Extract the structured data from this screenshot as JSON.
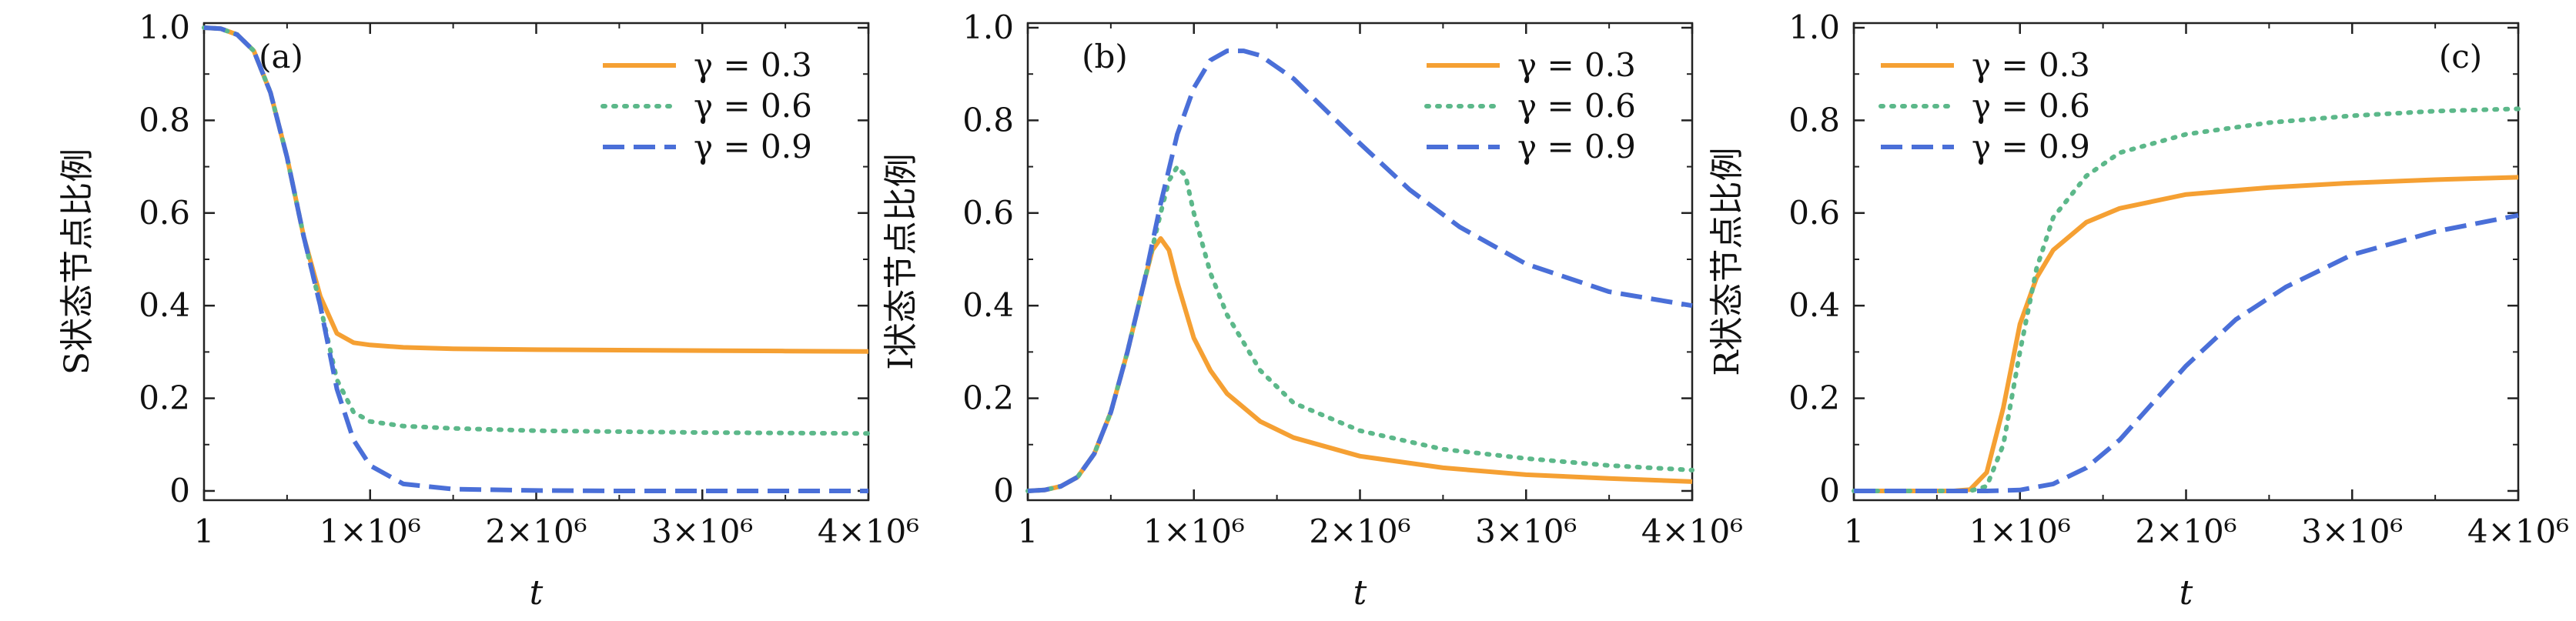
{
  "chart_data": [
    {
      "type": "line",
      "panel_label": "(a)",
      "ylabel": "S状态节点比例",
      "xlabel": "t",
      "x_tick_labels": [
        "1",
        "1×10⁶",
        "2×10⁶",
        "3×10⁶",
        "4×10⁶"
      ],
      "x_ticks": [
        1,
        1000000,
        2000000,
        3000000,
        4000000
      ],
      "y_tick_labels": [
        "0",
        "0.2",
        "0.4",
        "0.6",
        "0.8",
        "1.0"
      ],
      "y_ticks": [
        0,
        0.2,
        0.4,
        0.6,
        0.8,
        1.0
      ],
      "xlim": [
        1,
        4000000
      ],
      "ylim": [
        -0.02,
        1.01
      ],
      "legend_position": "top-right",
      "series": [
        {
          "name": "γ = 0.3",
          "style": "solid",
          "color": "#f5a033",
          "x": [
            1,
            100000,
            200000,
            300000,
            400000,
            500000,
            600000,
            700000,
            800000,
            900000,
            1000000,
            1200000,
            1500000,
            2000000,
            2500000,
            3000000,
            3500000,
            4000000
          ],
          "y": [
            1.0,
            0.998,
            0.985,
            0.95,
            0.86,
            0.72,
            0.55,
            0.42,
            0.34,
            0.32,
            0.315,
            0.31,
            0.307,
            0.305,
            0.304,
            0.303,
            0.302,
            0.301
          ]
        },
        {
          "name": "γ = 0.6",
          "style": "dotted",
          "color": "#5cb88a",
          "x": [
            1,
            100000,
            200000,
            300000,
            400000,
            500000,
            600000,
            700000,
            800000,
            900000,
            1000000,
            1200000,
            1500000,
            2000000,
            2500000,
            3000000,
            3500000,
            4000000
          ],
          "y": [
            1.0,
            0.998,
            0.985,
            0.95,
            0.86,
            0.72,
            0.55,
            0.4,
            0.24,
            0.17,
            0.15,
            0.14,
            0.135,
            0.13,
            0.128,
            0.126,
            0.125,
            0.124
          ]
        },
        {
          "name": "γ = 0.9",
          "style": "dashed",
          "color": "#4a6fd8",
          "x": [
            1,
            100000,
            200000,
            300000,
            400000,
            500000,
            600000,
            700000,
            800000,
            900000,
            1000000,
            1200000,
            1500000,
            2000000,
            2500000,
            3000000,
            3500000,
            4000000
          ],
          "y": [
            1.0,
            0.998,
            0.985,
            0.95,
            0.86,
            0.72,
            0.55,
            0.4,
            0.22,
            0.11,
            0.055,
            0.015,
            0.004,
            0.001,
            0.0,
            0.0,
            0.0,
            0.0
          ]
        }
      ]
    },
    {
      "type": "line",
      "panel_label": "(b)",
      "ylabel": "I状态节点比例",
      "xlabel": "t",
      "x_tick_labels": [
        "1",
        "1×10⁶",
        "2×10⁶",
        "3×10⁶",
        "4×10⁶"
      ],
      "x_ticks": [
        1,
        1000000,
        2000000,
        3000000,
        4000000
      ],
      "y_tick_labels": [
        "0",
        "0.2",
        "0.4",
        "0.6",
        "0.8",
        "1.0"
      ],
      "y_ticks": [
        0,
        0.2,
        0.4,
        0.6,
        0.8,
        1.0
      ],
      "xlim": [
        1,
        4000000
      ],
      "ylim": [
        -0.02,
        1.01
      ],
      "legend_position": "top-right",
      "series": [
        {
          "name": "γ = 0.3",
          "style": "solid",
          "color": "#f5a033",
          "x": [
            1,
            100000,
            200000,
            300000,
            400000,
            500000,
            600000,
            700000,
            750000,
            800000,
            850000,
            900000,
            1000000,
            1100000,
            1200000,
            1400000,
            1600000,
            2000000,
            2500000,
            3000000,
            3500000,
            4000000
          ],
          "y": [
            0.0,
            0.002,
            0.01,
            0.03,
            0.08,
            0.17,
            0.3,
            0.45,
            0.52,
            0.545,
            0.52,
            0.45,
            0.33,
            0.26,
            0.21,
            0.15,
            0.115,
            0.075,
            0.05,
            0.035,
            0.027,
            0.02
          ]
        },
        {
          "name": "γ = 0.6",
          "style": "dotted",
          "color": "#5cb88a",
          "x": [
            1,
            100000,
            200000,
            300000,
            400000,
            500000,
            600000,
            700000,
            800000,
            850000,
            900000,
            950000,
            1000000,
            1100000,
            1200000,
            1400000,
            1600000,
            2000000,
            2500000,
            3000000,
            3500000,
            4000000
          ],
          "y": [
            0.0,
            0.002,
            0.01,
            0.03,
            0.08,
            0.17,
            0.3,
            0.45,
            0.6,
            0.67,
            0.7,
            0.68,
            0.6,
            0.47,
            0.38,
            0.26,
            0.19,
            0.13,
            0.09,
            0.07,
            0.055,
            0.045
          ]
        },
        {
          "name": "γ = 0.9",
          "style": "dashed",
          "color": "#4a6fd8",
          "x": [
            1,
            100000,
            200000,
            300000,
            400000,
            500000,
            600000,
            700000,
            800000,
            900000,
            1000000,
            1100000,
            1200000,
            1300000,
            1400000,
            1600000,
            1800000,
            2000000,
            2300000,
            2600000,
            3000000,
            3500000,
            4000000
          ],
          "y": [
            0.0,
            0.002,
            0.01,
            0.03,
            0.08,
            0.17,
            0.3,
            0.45,
            0.62,
            0.77,
            0.87,
            0.93,
            0.95,
            0.95,
            0.94,
            0.89,
            0.82,
            0.75,
            0.65,
            0.57,
            0.49,
            0.43,
            0.4
          ]
        }
      ]
    },
    {
      "type": "line",
      "panel_label": "(c)",
      "ylabel": "R状态节点比例",
      "xlabel": "t",
      "x_tick_labels": [
        "1",
        "1×10⁶",
        "2×10⁶",
        "3×10⁶",
        "4×10⁶"
      ],
      "x_ticks": [
        1,
        1000000,
        2000000,
        3000000,
        4000000
      ],
      "y_tick_labels": [
        "0",
        "0.2",
        "0.4",
        "0.6",
        "0.8",
        "1.0"
      ],
      "y_ticks": [
        0,
        0.2,
        0.4,
        0.6,
        0.8,
        1.0
      ],
      "xlim": [
        1,
        4000000
      ],
      "ylim": [
        -0.02,
        1.01
      ],
      "legend_position": "top-left",
      "series": [
        {
          "name": "γ = 0.3",
          "style": "solid",
          "color": "#f5a033",
          "x": [
            1,
            400000,
            600000,
            700000,
            800000,
            900000,
            1000000,
            1100000,
            1200000,
            1400000,
            1600000,
            2000000,
            2500000,
            3000000,
            3500000,
            4000000
          ],
          "y": [
            0.0,
            0.0,
            0.0,
            0.003,
            0.04,
            0.18,
            0.36,
            0.46,
            0.52,
            0.58,
            0.61,
            0.64,
            0.655,
            0.665,
            0.672,
            0.677
          ]
        },
        {
          "name": "γ = 0.6",
          "style": "dotted",
          "color": "#5cb88a",
          "x": [
            1,
            400000,
            700000,
            800000,
            900000,
            1000000,
            1100000,
            1200000,
            1400000,
            1600000,
            2000000,
            2500000,
            3000000,
            3500000,
            4000000
          ],
          "y": [
            0.0,
            0.0,
            0.0,
            0.01,
            0.1,
            0.3,
            0.48,
            0.59,
            0.68,
            0.73,
            0.77,
            0.795,
            0.81,
            0.82,
            0.825
          ]
        },
        {
          "name": "γ = 0.9",
          "style": "dashed",
          "color": "#4a6fd8",
          "x": [
            1,
            400000,
            800000,
            1000000,
            1200000,
            1400000,
            1600000,
            1800000,
            2000000,
            2300000,
            2600000,
            3000000,
            3500000,
            4000000
          ],
          "y": [
            0.0,
            0.0,
            0.0,
            0.002,
            0.015,
            0.05,
            0.11,
            0.19,
            0.27,
            0.37,
            0.44,
            0.51,
            0.56,
            0.595
          ]
        }
      ]
    }
  ]
}
